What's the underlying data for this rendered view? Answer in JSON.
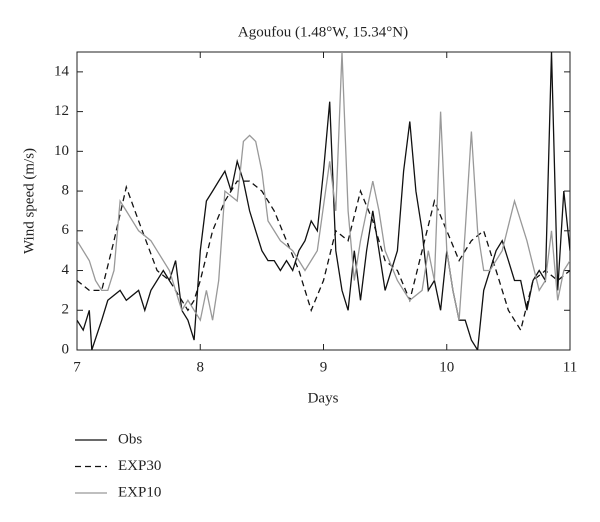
{
  "chart_data": {
    "type": "line",
    "title": "Agoufou (1.48°W, 15.34°N)",
    "xlabel": "Days",
    "ylabel": "Wind speed (m/s)",
    "xlim": [
      7,
      11
    ],
    "xticks": [
      7,
      8,
      9,
      10,
      11
    ],
    "ylim": [
      0,
      15
    ],
    "yticks": [
      0,
      2,
      4,
      6,
      8,
      10,
      12,
      14
    ],
    "legend": "bottom-left",
    "series": [
      {
        "name": "Obs",
        "color": "#111111",
        "linestyle": "solid",
        "x": [
          7.0,
          7.05,
          7.1,
          7.12,
          7.2,
          7.25,
          7.35,
          7.4,
          7.5,
          7.55,
          7.6,
          7.7,
          7.75,
          7.8,
          7.85,
          7.9,
          7.95,
          8.0,
          8.05,
          8.1,
          8.15,
          8.2,
          8.25,
          8.3,
          8.35,
          8.4,
          8.45,
          8.5,
          8.55,
          8.6,
          8.65,
          8.7,
          8.75,
          8.8,
          8.85,
          8.9,
          8.95,
          9.0,
          9.05,
          9.1,
          9.15,
          9.2,
          9.25,
          9.3,
          9.35,
          9.4,
          9.45,
          9.5,
          9.55,
          9.6,
          9.65,
          9.7,
          9.75,
          9.8,
          9.85,
          9.9,
          9.95,
          10.0,
          10.05,
          10.1,
          10.15,
          10.2,
          10.25,
          10.3,
          10.35,
          10.4,
          10.45,
          10.5,
          10.55,
          10.6,
          10.65,
          10.7,
          10.75,
          10.8,
          10.85,
          10.9,
          10.95,
          11.0
        ],
        "values": [
          1.5,
          1,
          2,
          0,
          1.5,
          2.5,
          3,
          2.5,
          3,
          2,
          3,
          4,
          3.5,
          4.5,
          2,
          1.5,
          0.5,
          5,
          7.5,
          8,
          8.5,
          9,
          8,
          9.5,
          8.5,
          7,
          6,
          5,
          4.5,
          4.5,
          4,
          4.5,
          4,
          5,
          5.5,
          6.5,
          6,
          9,
          12.5,
          5,
          3,
          2,
          5,
          2.5,
          5,
          7,
          5,
          3,
          4,
          5,
          9,
          11.5,
          8,
          6,
          3,
          3.5,
          2,
          5,
          3,
          1.5,
          1.5,
          0.5,
          0,
          3,
          4,
          5,
          5.5,
          4.5,
          3.5,
          3.5,
          2,
          3.5,
          4,
          3.5,
          15,
          3,
          8,
          5
        ]
      },
      {
        "name": "EXP30",
        "color": "#111111",
        "linestyle": "dashed",
        "x": [
          7.0,
          7.1,
          7.2,
          7.3,
          7.4,
          7.5,
          7.65,
          7.75,
          7.9,
          7.95,
          8.0,
          8.1,
          8.2,
          8.3,
          8.4,
          8.5,
          8.6,
          8.7,
          8.8,
          8.9,
          9.0,
          9.1,
          9.2,
          9.3,
          9.4,
          9.5,
          9.6,
          9.7,
          9.8,
          9.9,
          10.0,
          10.1,
          10.2,
          10.3,
          10.4,
          10.5,
          10.6,
          10.7,
          10.8,
          10.9,
          11.0
        ],
        "values": [
          3.5,
          3,
          3,
          5.5,
          8.2,
          6.5,
          4,
          3.5,
          2,
          2.5,
          3.5,
          6,
          7.5,
          8.5,
          8.5,
          8,
          7,
          5.5,
          4,
          2,
          3.5,
          6,
          5.5,
          8,
          6.5,
          4.5,
          4,
          2.5,
          5,
          7.5,
          6,
          4.5,
          5.5,
          6,
          4,
          2,
          1,
          3.5,
          4,
          3.5,
          4
        ]
      },
      {
        "name": "EXP10",
        "color": "#999999",
        "linestyle": "solid",
        "x": [
          7.0,
          7.1,
          7.15,
          7.2,
          7.25,
          7.3,
          7.35,
          7.4,
          7.5,
          7.6,
          7.65,
          7.75,
          7.85,
          7.9,
          8.0,
          8.05,
          8.1,
          8.15,
          8.2,
          8.3,
          8.35,
          8.4,
          8.45,
          8.5,
          8.55,
          8.65,
          8.75,
          8.8,
          8.85,
          8.95,
          9.05,
          9.1,
          9.15,
          9.2,
          9.25,
          9.3,
          9.4,
          9.45,
          9.5,
          9.6,
          9.7,
          9.8,
          9.85,
          9.9,
          9.95,
          10.0,
          10.05,
          10.1,
          10.15,
          10.2,
          10.25,
          10.3,
          10.35,
          10.45,
          10.55,
          10.65,
          10.75,
          10.8,
          10.85,
          10.9,
          10.95,
          11.0
        ],
        "values": [
          5.5,
          4.5,
          3.5,
          3,
          3,
          4,
          7.5,
          7,
          6,
          5.5,
          5,
          4,
          2,
          2.5,
          1.5,
          3,
          1.5,
          3.5,
          8,
          7.5,
          10.5,
          10.8,
          10.5,
          9,
          6.5,
          5.5,
          5,
          4.5,
          4,
          5,
          9.5,
          7,
          15,
          7,
          3.5,
          5.5,
          8.5,
          7,
          5,
          3.5,
          2.5,
          3,
          5,
          3.5,
          12,
          5,
          3,
          1.5,
          6,
          11,
          6,
          4,
          4,
          5,
          7.5,
          5.5,
          3,
          3.5,
          6,
          2.5,
          4,
          4.5
        ]
      }
    ]
  }
}
